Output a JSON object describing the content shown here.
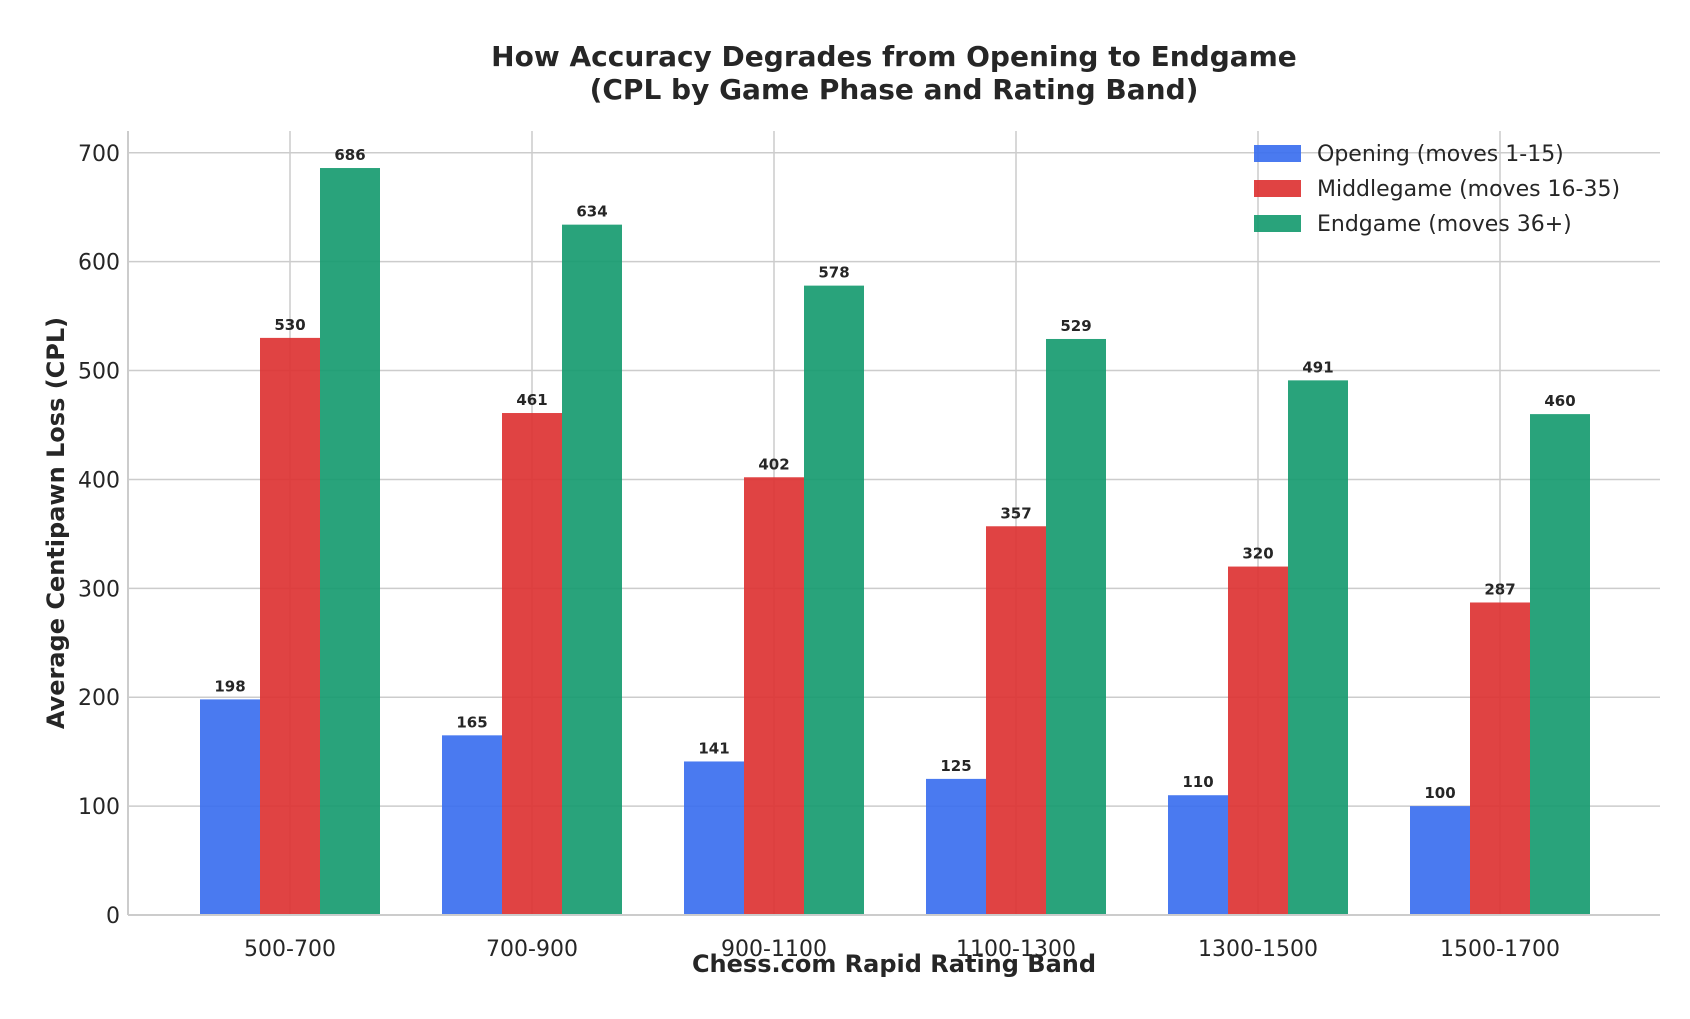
{
  "chart_data": {
    "type": "bar",
    "title": "How Accuracy Degrades from Opening to Endgame",
    "subtitle": "(CPL by Game Phase and Rating Band)",
    "xlabel": "Chess.com Rapid Rating Band",
    "ylabel": "Average Centipawn Loss (CPL)",
    "ylim": [
      0,
      720
    ],
    "yticks": [
      0,
      100,
      200,
      300,
      400,
      500,
      600,
      700
    ],
    "grid": true,
    "legend_position": "top-right",
    "categories": [
      "500-700",
      "700-900",
      "900-1100",
      "1100-1300",
      "1300-1500",
      "1500-1700"
    ],
    "series": [
      {
        "name": "Opening (moves 1-15)",
        "color": "#3b6fef",
        "values": [
          198,
          165,
          141,
          125,
          110,
          100
        ]
      },
      {
        "name": "Middlegame (moves 16-35)",
        "color": "#dd3333",
        "values": [
          530,
          461,
          402,
          357,
          320,
          287
        ]
      },
      {
        "name": "Endgame (moves 36+)",
        "color": "#179b70",
        "values": [
          686,
          634,
          578,
          529,
          491,
          460
        ]
      }
    ]
  }
}
